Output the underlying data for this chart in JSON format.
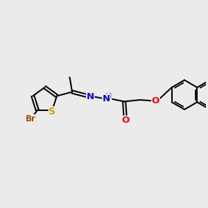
{
  "background_color": "#ebebeb",
  "bond_color": "#000000",
  "bond_width": 1.5,
  "atom_colors": {
    "Br": "#a05000",
    "S": "#ccaa00",
    "N": "#0000ff",
    "O": "#ff0000",
    "C": "#000000"
  },
  "font_size": 8.5,
  "figsize": [
    3.0,
    3.0
  ],
  "dpi": 100,
  "scale": 1.0
}
